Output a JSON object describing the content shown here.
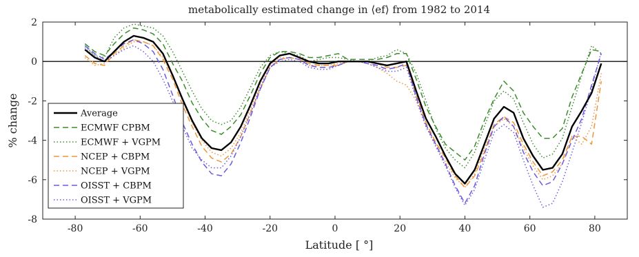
{
  "chart_data": {
    "type": "line",
    "title": "metabolically estimated change in ⟨ef⟩ from 1982 to 2014",
    "xlabel": "Latitude [ °]",
    "ylabel": "% change",
    "xlim": [
      -90,
      90
    ],
    "ylim": [
      -8,
      2
    ],
    "xticks": [
      -80,
      -60,
      -40,
      -20,
      0,
      20,
      40,
      60,
      80
    ],
    "yticks": [
      2,
      0,
      -2,
      -4,
      -6,
      -8
    ],
    "legend_position": "lower-left",
    "grid": false,
    "zero_line": true,
    "x": [
      -77,
      -74,
      -71,
      -68,
      -65,
      -62,
      -59,
      -56,
      -53,
      -50,
      -47,
      -44,
      -41,
      -38,
      -35,
      -32,
      -29,
      -26,
      -23,
      -20,
      -17,
      -14,
      -11,
      -8,
      -5,
      -2,
      1,
      4,
      7,
      10,
      13,
      16,
      19,
      22,
      25,
      28,
      31,
      34,
      37,
      40,
      43,
      46,
      49,
      52,
      55,
      58,
      61,
      64,
      67,
      70,
      73,
      76,
      79,
      82
    ],
    "series": [
      {
        "name": "Average",
        "color": "#000000",
        "dash": "solid",
        "width": 2.4,
        "values": [
          0.6,
          0.2,
          0.0,
          0.5,
          1.0,
          1.3,
          1.2,
          1.0,
          0.4,
          -0.7,
          -1.9,
          -3.0,
          -3.9,
          -4.4,
          -4.5,
          -4.1,
          -3.3,
          -2.2,
          -1.0,
          -0.1,
          0.3,
          0.4,
          0.2,
          0.0,
          -0.1,
          -0.1,
          0.0,
          0.0,
          0.0,
          0.0,
          -0.1,
          -0.2,
          -0.1,
          0.0,
          -1.5,
          -2.9,
          -3.8,
          -4.8,
          -5.7,
          -6.2,
          -5.5,
          -4.2,
          -2.9,
          -2.3,
          -2.6,
          -3.9,
          -4.8,
          -5.5,
          -5.4,
          -4.7,
          -3.3,
          -2.5,
          -1.6,
          -0.1
        ]
      },
      {
        "name": "ECMWF CPBM",
        "color": "#3a8a2a",
        "dash": "8,5",
        "width": 1.5,
        "values": [
          0.9,
          0.5,
          0.3,
          0.9,
          1.4,
          1.7,
          1.6,
          1.4,
          0.9,
          -0.1,
          -1.0,
          -2.1,
          -2.9,
          -3.5,
          -3.7,
          -3.3,
          -2.7,
          -1.7,
          -0.6,
          0.2,
          0.5,
          0.5,
          0.4,
          0.2,
          0.2,
          0.3,
          0.4,
          0.1,
          0.1,
          0.1,
          0.1,
          0.2,
          0.4,
          0.4,
          -0.9,
          -2.3,
          -3.3,
          -4.2,
          -4.6,
          -5.0,
          -4.3,
          -3.0,
          -1.9,
          -1.0,
          -1.5,
          -2.6,
          -3.3,
          -3.9,
          -3.9,
          -3.4,
          -1.8,
          -0.6,
          0.6,
          0.5
        ]
      },
      {
        "name": "ECMWF + VGPM",
        "color": "#3a8a2a",
        "dash": "1.5,3",
        "width": 1.5,
        "values": [
          0.8,
          0.3,
          0.2,
          1.2,
          1.7,
          1.9,
          1.8,
          1.7,
          1.3,
          0.5,
          -0.5,
          -1.5,
          -2.4,
          -3.0,
          -3.2,
          -3.0,
          -2.3,
          -1.3,
          -0.3,
          0.3,
          0.5,
          0.4,
          0.3,
          0.0,
          0.1,
          0.2,
          0.2,
          0.1,
          0.0,
          0.0,
          0.2,
          0.3,
          0.6,
          0.4,
          -0.6,
          -2.0,
          -3.4,
          -4.4,
          -5.0,
          -5.4,
          -4.6,
          -3.3,
          -2.0,
          -1.5,
          -1.9,
          -3.1,
          -4.2,
          -4.9,
          -4.7,
          -3.9,
          -2.3,
          -0.7,
          0.8,
          0.4
        ]
      },
      {
        "name": "NCEP + CBPM",
        "color": "#f0943a",
        "dash": "8,5",
        "width": 1.5,
        "values": [
          0.3,
          -0.1,
          -0.2,
          0.4,
          0.8,
          1.1,
          1.0,
          0.8,
          0.1,
          -0.9,
          -2.2,
          -3.3,
          -4.3,
          -4.9,
          -5.1,
          -4.7,
          -3.8,
          -2.6,
          -1.4,
          -0.3,
          0.1,
          0.2,
          0.1,
          -0.1,
          -0.2,
          -0.2,
          -0.2,
          0.0,
          0.0,
          0.0,
          -0.1,
          -0.3,
          -0.3,
          -0.2,
          -1.7,
          -3.1,
          -4.1,
          -4.9,
          -5.8,
          -6.4,
          -5.8,
          -4.6,
          -3.2,
          -2.8,
          -3.1,
          -4.2,
          -5.1,
          -5.8,
          -5.6,
          -5.0,
          -3.8,
          -3.8,
          -4.2,
          -1.0
        ]
      },
      {
        "name": "NCEP + VGPM",
        "color": "#f0943a",
        "dash": "1.5,3",
        "width": 1.5,
        "values": [
          0.2,
          -0.2,
          -0.1,
          0.3,
          0.7,
          1.0,
          1.0,
          0.8,
          0.2,
          -0.7,
          -2.0,
          -3.1,
          -4.0,
          -4.6,
          -4.8,
          -4.4,
          -3.6,
          -2.4,
          -1.2,
          -0.2,
          0.2,
          0.2,
          0.1,
          -0.2,
          -0.2,
          -0.2,
          -0.1,
          0.0,
          0.0,
          -0.1,
          -0.3,
          -0.6,
          -1.0,
          -1.2,
          -2.0,
          -3.3,
          -4.2,
          -5.1,
          -5.9,
          -6.4,
          -5.7,
          -4.4,
          -3.3,
          -2.9,
          -3.3,
          -4.4,
          -5.3,
          -6.0,
          -5.8,
          -5.2,
          -3.8,
          -4.2,
          -3.3,
          -0.6
        ]
      },
      {
        "name": "OISST + CBPM",
        "color": "#6a5ae0",
        "dash": "8,5",
        "width": 1.5,
        "values": [
          0.8,
          0.4,
          0.1,
          0.5,
          0.9,
          1.1,
          0.9,
          0.5,
          -0.4,
          -1.7,
          -3.1,
          -4.2,
          -5.1,
          -5.7,
          -5.8,
          -5.2,
          -4.1,
          -2.8,
          -1.4,
          -0.3,
          0.1,
          0.2,
          0.1,
          -0.2,
          -0.3,
          -0.3,
          -0.2,
          0.0,
          0.0,
          -0.1,
          -0.2,
          -0.4,
          -0.3,
          -0.1,
          -1.8,
          -3.2,
          -4.2,
          -5.2,
          -6.3,
          -7.2,
          -6.3,
          -4.7,
          -3.3,
          -2.8,
          -3.3,
          -4.6,
          -5.6,
          -6.3,
          -6.1,
          -5.2,
          -4.0,
          -2.9,
          -1.2,
          0.4
        ]
      },
      {
        "name": "OISST + VGPM",
        "color": "#6a5ae0",
        "dash": "1.5,3",
        "width": 1.5,
        "values": [
          0.7,
          0.3,
          0.0,
          0.3,
          0.6,
          0.8,
          0.5,
          0.0,
          -0.9,
          -2.0,
          -3.3,
          -4.4,
          -5.0,
          -5.4,
          -5.4,
          -4.8,
          -3.8,
          -2.6,
          -1.3,
          -0.3,
          0.0,
          0.1,
          0.0,
          -0.3,
          -0.4,
          -0.4,
          -0.2,
          0.0,
          0.0,
          -0.1,
          -0.3,
          -0.5,
          -0.5,
          -0.3,
          -1.9,
          -3.3,
          -4.3,
          -5.3,
          -6.4,
          -7.3,
          -6.5,
          -5.0,
          -3.6,
          -3.2,
          -3.6,
          -5.0,
          -6.3,
          -7.4,
          -7.2,
          -6.1,
          -4.6,
          -3.1,
          -1.4,
          0.5
        ]
      }
    ]
  }
}
